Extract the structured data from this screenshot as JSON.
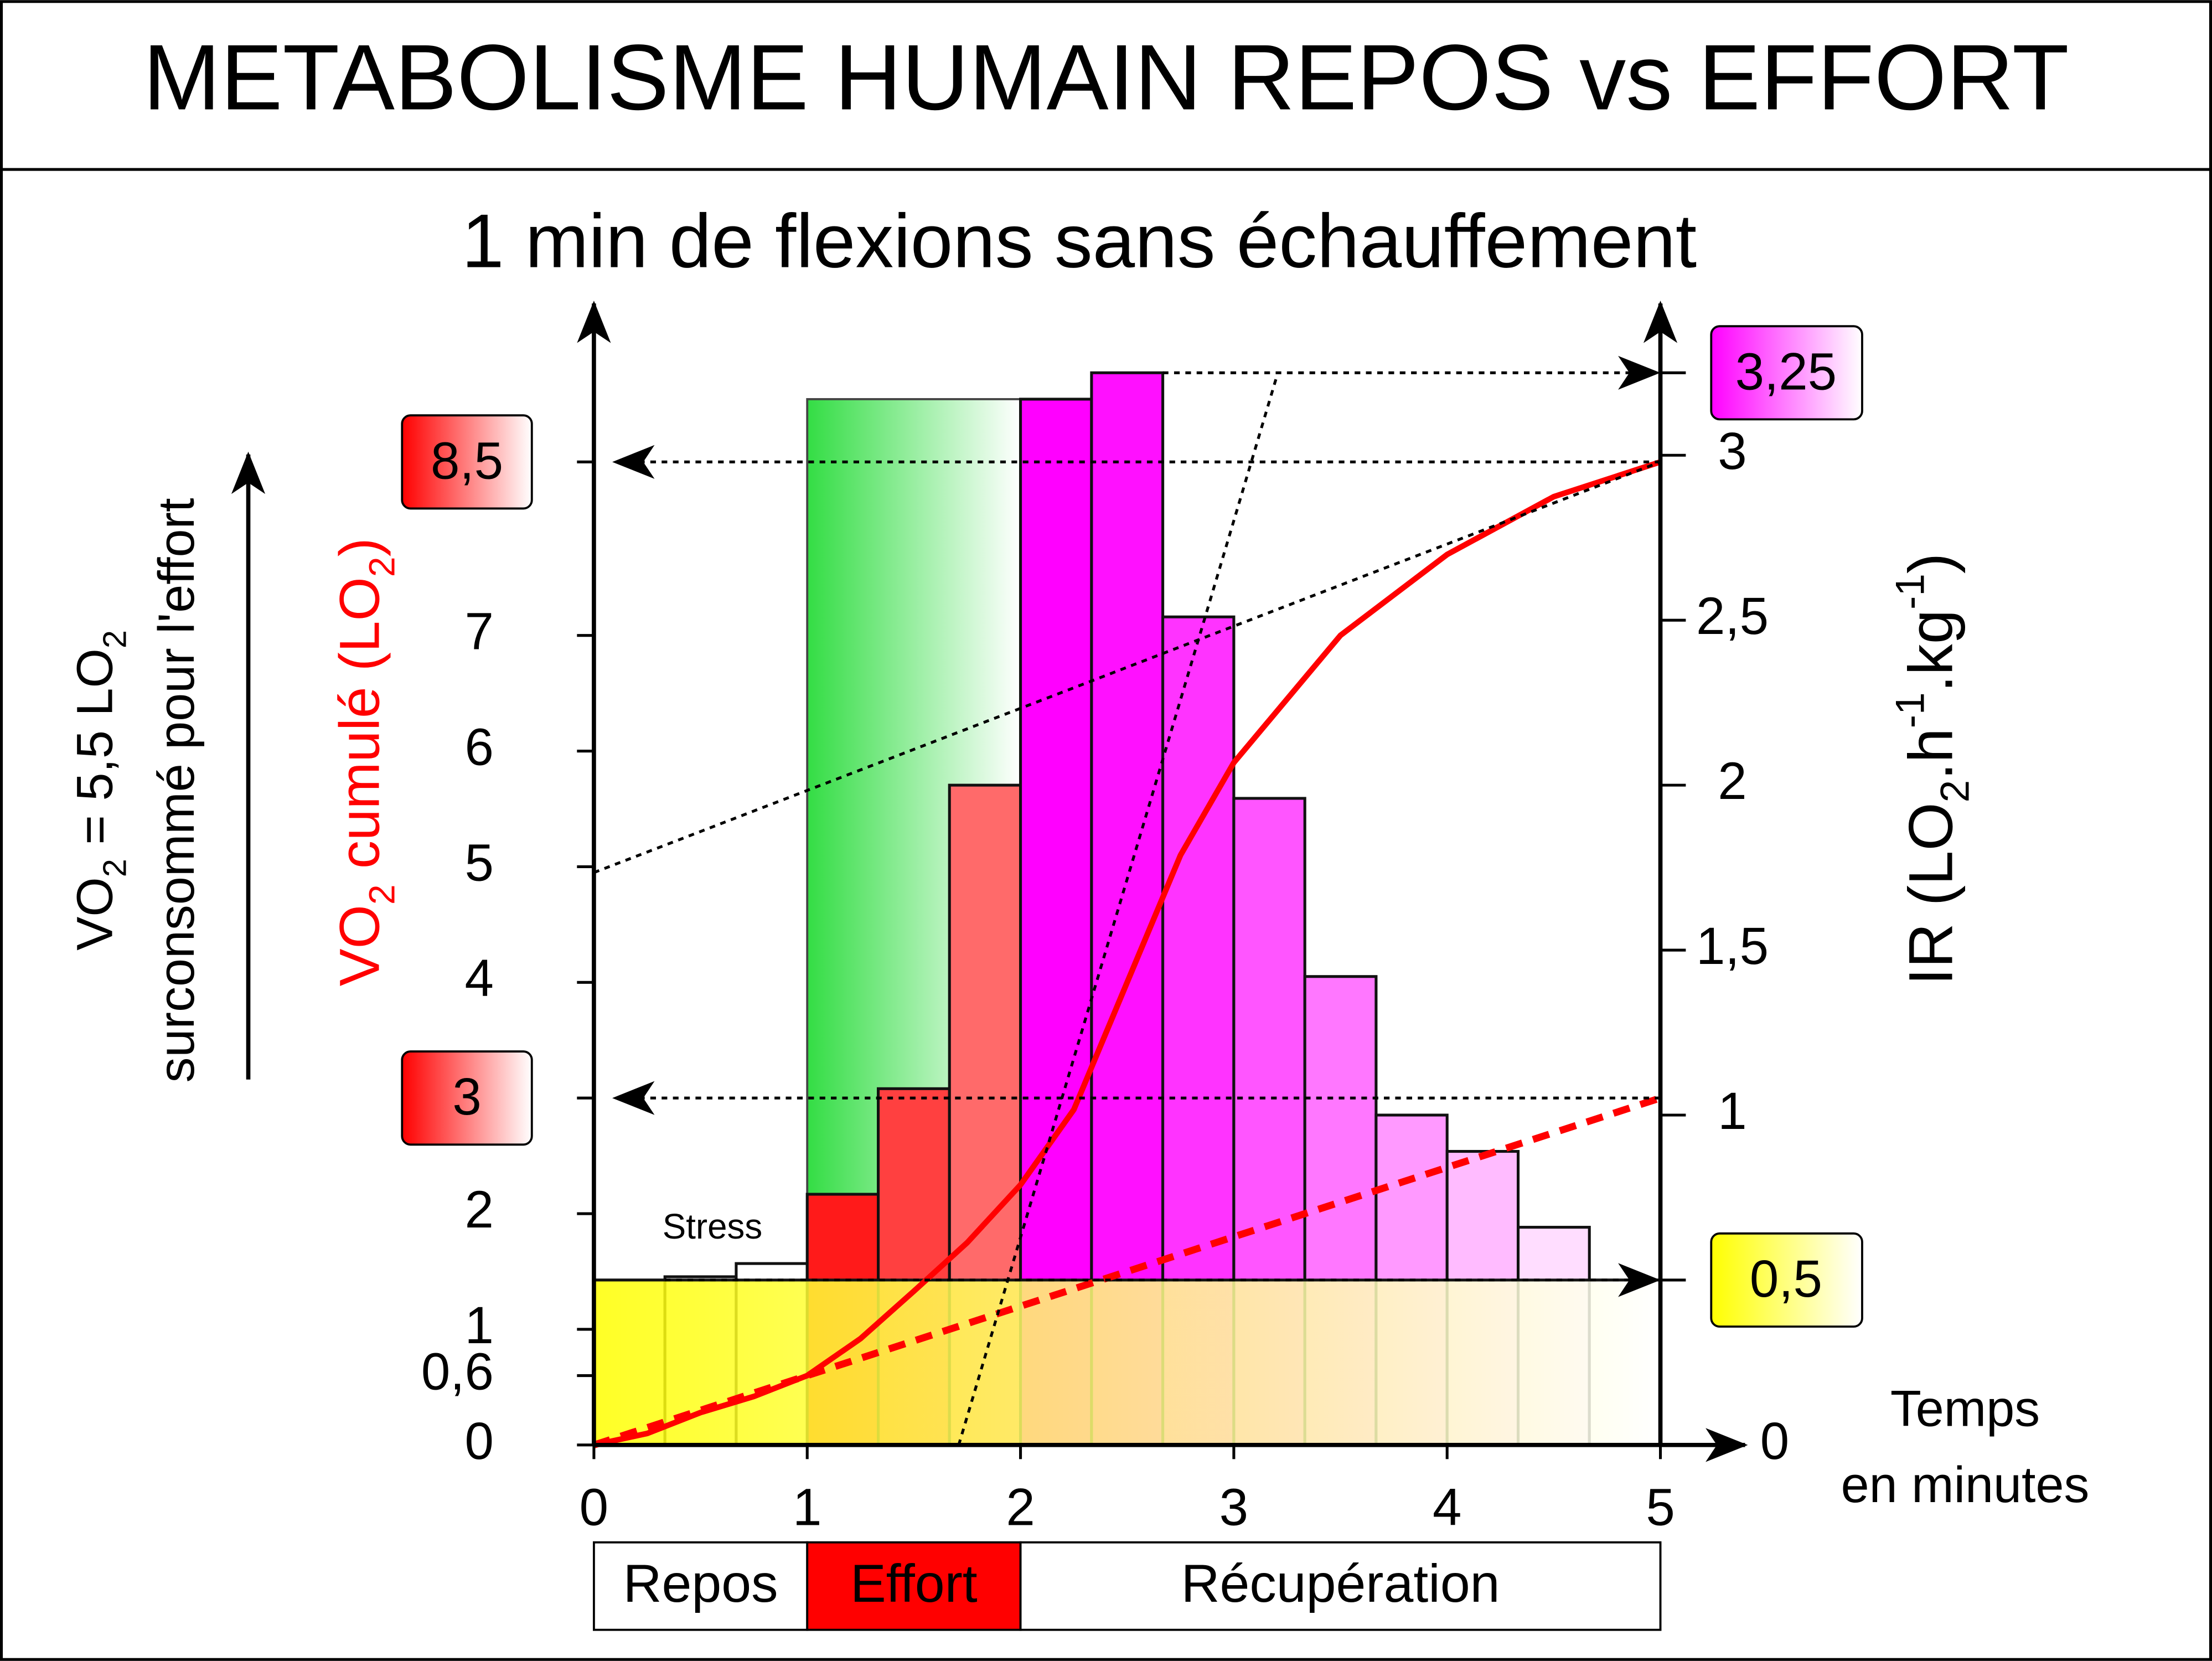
{
  "chart_data": {
    "type": "histogram",
    "title": "METABOLISME HUMAIN REPOS vs EFFORT",
    "subtitle": "1 min de flexions sans échauffement",
    "xlabel": [
      "Temps",
      "en minutes"
    ],
    "xlim": [
      0,
      5
    ],
    "xticks": [
      0,
      1,
      2,
      3,
      4,
      5
    ],
    "ylabel": [
      {
        "text": "VO"
      },
      {
        "sub": "2"
      },
      {
        "text": " cumulé (LO"
      },
      {
        "sub": "2"
      },
      {
        "text": ")"
      }
    ],
    "ylabel_color": "#ff0000",
    "ylim": [
      0,
      9.87
    ],
    "yticks": [
      0,
      {
        "value": 0.6,
        "label": "0,6"
      },
      1,
      2,
      4,
      5,
      6,
      7
    ],
    "y_markers": [
      {
        "value": 3,
        "label": "3",
        "color": "#ff0000"
      },
      {
        "value": 8.5,
        "label": "8,5",
        "color": "#ff0000"
      }
    ],
    "y2label": [
      {
        "text": "IR (LO"
      },
      {
        "sub": "2"
      },
      {
        "text": ".h"
      },
      {
        "sup": "-1"
      },
      {
        "text": ".kg"
      },
      {
        "sup": "-1"
      },
      {
        "text": ")"
      }
    ],
    "y2lim": [
      0,
      3.46
    ],
    "y2ticks": [
      0,
      1,
      {
        "value": 1.5,
        "label": "1,5"
      },
      2,
      {
        "value": 2.5,
        "label": "2,5"
      },
      3
    ],
    "y2_markers": [
      {
        "value": 0.5,
        "label": "0,5",
        "color": "#ffff00"
      },
      {
        "value": 3.25,
        "label": "3,25",
        "color": "#ff00ff"
      }
    ],
    "bins": [
      0,
      0.333,
      0.667,
      1,
      1.333,
      1.667,
      2,
      2.333,
      2.667,
      3,
      3.333,
      3.667,
      4,
      4.333,
      4.667,
      5
    ],
    "values": [
      0.5,
      0.51,
      0.55,
      0.76,
      1.08,
      2.0,
      3.17,
      3.25,
      2.51,
      1.96,
      1.42,
      1.0,
      0.89,
      0.66,
      0.5
    ],
    "bar_colors": [
      "#ffffff",
      "#ffffff",
      "#ffffff",
      "#ff1a1a",
      "#ff4040",
      "#ff6a6a",
      "#ff00ff",
      "#ff10ff",
      "#ff33ff",
      "#ff55ff",
      "#ff77ff",
      "#ff99ff",
      "#ffbbff",
      "#ffddff",
      "#ffffff"
    ],
    "basal": {
      "value": 0.5,
      "color": "#ffff00"
    },
    "effort_zone": {
      "x": [
        1,
        2
      ],
      "top": 3.17,
      "color": "#33dd44"
    },
    "lines": [
      {
        "x": [
          0,
          0.25,
          0.5,
          0.75,
          1,
          1.25,
          1.5,
          1.75,
          2,
          2.25,
          2.5,
          2.75,
          3,
          3.5,
          4,
          4.5,
          5
        ],
        "values": [
          0,
          0.1,
          0.28,
          0.42,
          0.6,
          0.92,
          1.33,
          1.75,
          2.25,
          2.9,
          4.0,
          5.1,
          5.9,
          7.0,
          7.7,
          8.2,
          8.5
        ],
        "color": "#ff0000",
        "style": "solid"
      },
      {
        "x": [
          0,
          5
        ],
        "values": [
          0,
          3
        ],
        "color": "#ff0000",
        "style": "dashed"
      },
      {
        "x": [
          0,
          5
        ],
        "values": [
          4.95,
          8.5
        ],
        "color": "#000000",
        "style": "dotted"
      },
      {
        "x": [
          1.71,
          3.2
        ],
        "values": [
          0,
          9.23
        ],
        "color": "#000000",
        "style": "dotted"
      }
    ],
    "annotation": "Stress",
    "side_note": [
      [
        {
          "text": "VO"
        },
        {
          "sub": "2"
        },
        {
          "text": " = 5,5 LO"
        },
        {
          "sub": "2"
        }
      ],
      [
        {
          "text": "surconsommé pour l'effort"
        }
      ]
    ],
    "phases": [
      {
        "label": "Repos",
        "start": 0,
        "end": 1,
        "color": "#ffffff"
      },
      {
        "label": "Effort",
        "start": 1,
        "end": 2,
        "color": "#ff0000"
      },
      {
        "label": "Récupération",
        "start": 2,
        "end": 5,
        "color": "#ffffff"
      }
    ]
  }
}
